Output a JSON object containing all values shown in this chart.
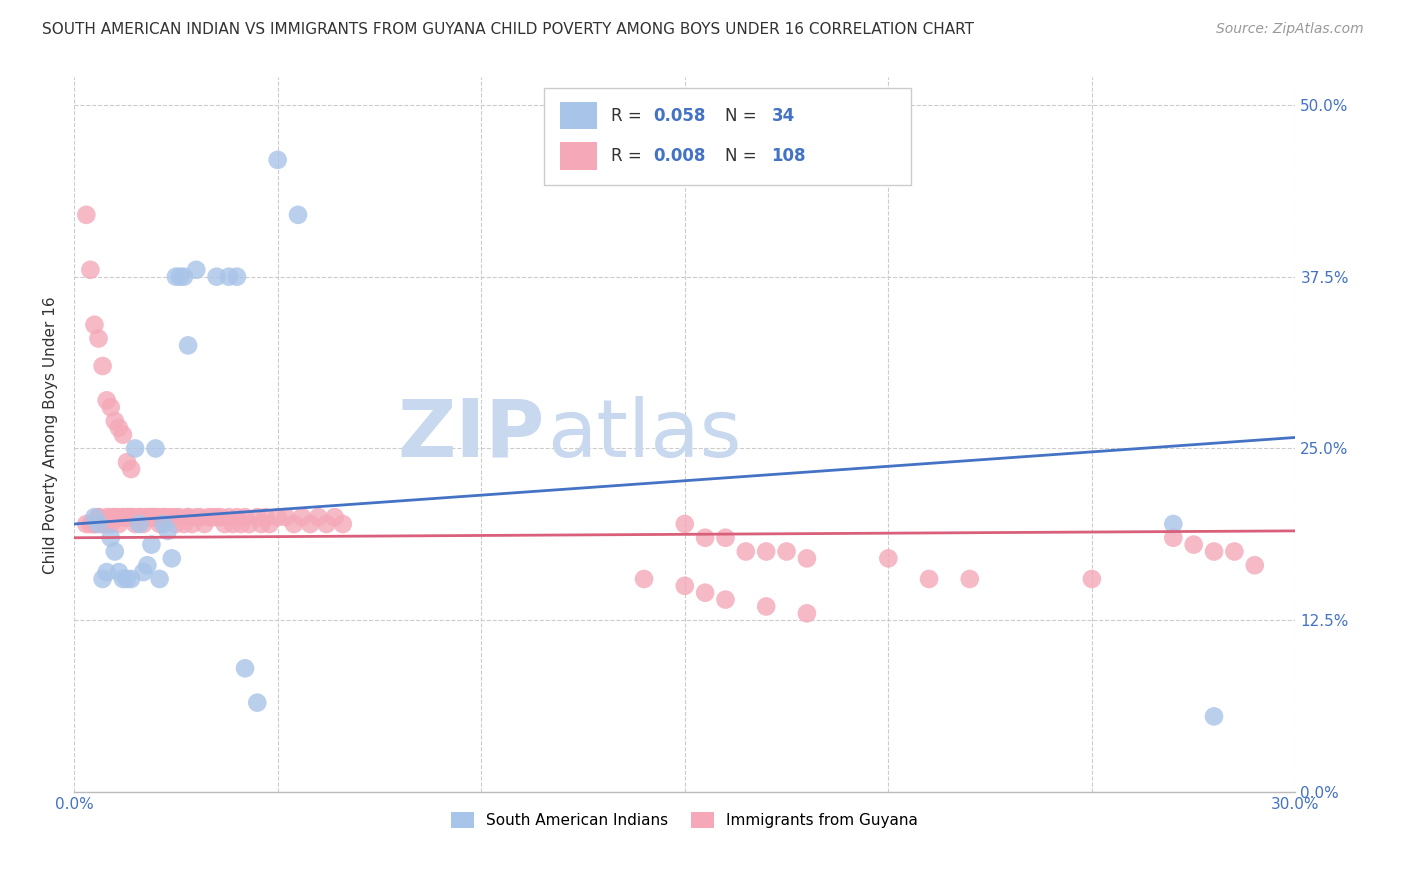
{
  "title": "SOUTH AMERICAN INDIAN VS IMMIGRANTS FROM GUYANA CHILD POVERTY AMONG BOYS UNDER 16 CORRELATION CHART",
  "source": "Source: ZipAtlas.com",
  "ylabel": "Child Poverty Among Boys Under 16",
  "xlim": [
    0.0,
    0.3
  ],
  "ylim": [
    0.0,
    0.52
  ],
  "legend_label_blue": "South American Indians",
  "legend_label_pink": "Immigrants from Guyana",
  "R_blue": "0.058",
  "N_blue": "34",
  "R_pink": "0.008",
  "N_pink": "108",
  "blue_color": "#a8c4e8",
  "pink_color": "#f4a8b8",
  "trendline_blue": "#4472c4",
  "trendline_pink": "#d95f7a",
  "watermark_color": "#c8d8ef",
  "label_color": "#4472c4",
  "background_color": "#ffffff",
  "blue_x": [
    0.005,
    0.006,
    0.007,
    0.008,
    0.009,
    0.01,
    0.011,
    0.012,
    0.013,
    0.014,
    0.015,
    0.016,
    0.017,
    0.018,
    0.019,
    0.02,
    0.021,
    0.022,
    0.023,
    0.024,
    0.025,
    0.026,
    0.027,
    0.028,
    0.03,
    0.035,
    0.038,
    0.04,
    0.042,
    0.045,
    0.05,
    0.055,
    0.27,
    0.28
  ],
  "blue_y": [
    0.2,
    0.195,
    0.155,
    0.16,
    0.185,
    0.175,
    0.16,
    0.155,
    0.155,
    0.155,
    0.25,
    0.195,
    0.16,
    0.165,
    0.18,
    0.25,
    0.155,
    0.195,
    0.19,
    0.17,
    0.375,
    0.375,
    0.375,
    0.325,
    0.38,
    0.375,
    0.375,
    0.375,
    0.09,
    0.065,
    0.46,
    0.42,
    0.195,
    0.055
  ],
  "pink_x": [
    0.003,
    0.004,
    0.005,
    0.005,
    0.006,
    0.006,
    0.007,
    0.007,
    0.008,
    0.008,
    0.009,
    0.009,
    0.01,
    0.01,
    0.011,
    0.011,
    0.012,
    0.012,
    0.013,
    0.013,
    0.014,
    0.014,
    0.015,
    0.015,
    0.016,
    0.016,
    0.017,
    0.017,
    0.018,
    0.018,
    0.019,
    0.019,
    0.02,
    0.02,
    0.021,
    0.021,
    0.022,
    0.022,
    0.023,
    0.024,
    0.025,
    0.025,
    0.026,
    0.027,
    0.028,
    0.028,
    0.029,
    0.03,
    0.031,
    0.032,
    0.033,
    0.034,
    0.035,
    0.036,
    0.037,
    0.038,
    0.039,
    0.04,
    0.041,
    0.042,
    0.043,
    0.045,
    0.046,
    0.047,
    0.048,
    0.05,
    0.052,
    0.054,
    0.056,
    0.058,
    0.06,
    0.062,
    0.064,
    0.066,
    0.003,
    0.004,
    0.005,
    0.006,
    0.007,
    0.008,
    0.009,
    0.01,
    0.011,
    0.012,
    0.013,
    0.014,
    0.15,
    0.155,
    0.16,
    0.165,
    0.17,
    0.175,
    0.18,
    0.2,
    0.21,
    0.22,
    0.25,
    0.27,
    0.275,
    0.28,
    0.285,
    0.29,
    0.14,
    0.15,
    0.155,
    0.16,
    0.17,
    0.18
  ],
  "pink_y": [
    0.195,
    0.195,
    0.195,
    0.195,
    0.2,
    0.2,
    0.195,
    0.195,
    0.2,
    0.195,
    0.2,
    0.195,
    0.2,
    0.2,
    0.2,
    0.195,
    0.2,
    0.2,
    0.2,
    0.2,
    0.2,
    0.2,
    0.2,
    0.195,
    0.2,
    0.2,
    0.195,
    0.2,
    0.2,
    0.2,
    0.2,
    0.2,
    0.2,
    0.2,
    0.2,
    0.195,
    0.2,
    0.2,
    0.2,
    0.2,
    0.2,
    0.195,
    0.2,
    0.195,
    0.2,
    0.2,
    0.195,
    0.2,
    0.2,
    0.195,
    0.2,
    0.2,
    0.2,
    0.2,
    0.195,
    0.2,
    0.195,
    0.2,
    0.195,
    0.2,
    0.195,
    0.2,
    0.195,
    0.2,
    0.195,
    0.2,
    0.2,
    0.195,
    0.2,
    0.195,
    0.2,
    0.195,
    0.2,
    0.195,
    0.42,
    0.38,
    0.34,
    0.33,
    0.31,
    0.285,
    0.28,
    0.27,
    0.265,
    0.26,
    0.24,
    0.235,
    0.195,
    0.185,
    0.185,
    0.175,
    0.175,
    0.175,
    0.17,
    0.17,
    0.155,
    0.155,
    0.155,
    0.185,
    0.18,
    0.175,
    0.175,
    0.165,
    0.155,
    0.15,
    0.145,
    0.14,
    0.135,
    0.13
  ],
  "blue_trend_x0": 0.0,
  "blue_trend_y0": 0.195,
  "blue_trend_x1": 0.3,
  "blue_trend_y1": 0.258,
  "pink_trend_x0": 0.0,
  "pink_trend_y0": 0.185,
  "pink_trend_x1": 0.3,
  "pink_trend_y1": 0.19
}
